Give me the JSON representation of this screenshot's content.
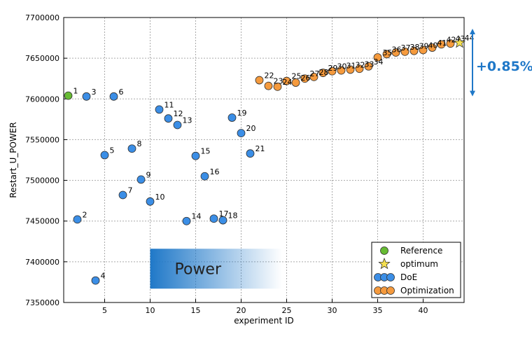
{
  "chart_data": {
    "type": "scatter",
    "xlabel": "experiment ID",
    "ylabel": "Restart_U_POWER",
    "xlim": [
      0.5,
      44.5
    ],
    "ylim": [
      7350000,
      7700000
    ],
    "xticks": [
      5,
      10,
      15,
      20,
      25,
      30,
      35,
      40
    ],
    "yticks": [
      7350000,
      7400000,
      7450000,
      7500000,
      7550000,
      7600000,
      7650000,
      7700000
    ],
    "grid": true,
    "legend_position": "bottom-right",
    "series": [
      {
        "name": "Reference",
        "color": "#66bb33",
        "marker": "circle",
        "points": [
          {
            "x": 1,
            "y": 7604000,
            "label": "1"
          }
        ]
      },
      {
        "name": "DoE",
        "color": "#3b8ee6",
        "marker": "circle",
        "points": [
          {
            "x": 2,
            "y": 7452000,
            "label": "2"
          },
          {
            "x": 3,
            "y": 7603000,
            "label": "3"
          },
          {
            "x": 4,
            "y": 7377000,
            "label": "4"
          },
          {
            "x": 5,
            "y": 7531000,
            "label": "5"
          },
          {
            "x": 6,
            "y": 7603000,
            "label": "6"
          },
          {
            "x": 7,
            "y": 7482000,
            "label": "7"
          },
          {
            "x": 8,
            "y": 7539000,
            "label": "8"
          },
          {
            "x": 9,
            "y": 7501000,
            "label": "9"
          },
          {
            "x": 10,
            "y": 7474000,
            "label": "10"
          },
          {
            "x": 11,
            "y": 7587000,
            "label": "11"
          },
          {
            "x": 12,
            "y": 7576000,
            "label": "12"
          },
          {
            "x": 13,
            "y": 7568000,
            "label": "13"
          },
          {
            "x": 14,
            "y": 7450000,
            "label": "14"
          },
          {
            "x": 15,
            "y": 7530000,
            "label": "15"
          },
          {
            "x": 16,
            "y": 7505000,
            "label": "16"
          },
          {
            "x": 17,
            "y": 7453000,
            "label": "17"
          },
          {
            "x": 18,
            "y": 7451000,
            "label": "18"
          },
          {
            "x": 19,
            "y": 7577000,
            "label": "19"
          },
          {
            "x": 20,
            "y": 7558000,
            "label": "20"
          },
          {
            "x": 21,
            "y": 7533000,
            "label": "21"
          }
        ]
      },
      {
        "name": "Optimization",
        "color": "#f59a3d",
        "marker": "circle",
        "points": [
          {
            "x": 22,
            "y": 7623000,
            "label": "22"
          },
          {
            "x": 23,
            "y": 7616000,
            "label": "23"
          },
          {
            "x": 24,
            "y": 7615000,
            "label": "24"
          },
          {
            "x": 25,
            "y": 7622000,
            "label": "25"
          },
          {
            "x": 26,
            "y": 7620000,
            "label": "26"
          },
          {
            "x": 27,
            "y": 7625000,
            "label": "27"
          },
          {
            "x": 28,
            "y": 7627000,
            "label": "28"
          },
          {
            "x": 29,
            "y": 7632000,
            "label": "29"
          },
          {
            "x": 30,
            "y": 7634000,
            "label": "30"
          },
          {
            "x": 31,
            "y": 7635000,
            "label": "31"
          },
          {
            "x": 32,
            "y": 7636000,
            "label": "32"
          },
          {
            "x": 33,
            "y": 7637000,
            "label": "33"
          },
          {
            "x": 34,
            "y": 7640000,
            "label": "34"
          },
          {
            "x": 35,
            "y": 7651000,
            "label": "35"
          },
          {
            "x": 36,
            "y": 7655000,
            "label": "36"
          },
          {
            "x": 37,
            "y": 7657000,
            "label": "37"
          },
          {
            "x": 38,
            "y": 7658000,
            "label": "38"
          },
          {
            "x": 39,
            "y": 7659000,
            "label": "39"
          },
          {
            "x": 40,
            "y": 7660000,
            "label": "40"
          },
          {
            "x": 41,
            "y": 7663000,
            "label": "41"
          },
          {
            "x": 42,
            "y": 7667000,
            "label": "42"
          },
          {
            "x": 43,
            "y": 7668000,
            "label": "43"
          }
        ]
      },
      {
        "name": "optimum",
        "color": "#f5e050",
        "marker": "star",
        "points": [
          {
            "x": 44,
            "y": 7669000,
            "label": "44"
          }
        ]
      }
    ],
    "legend": [
      {
        "name": "Reference",
        "marker": "circle",
        "color": "#66bb33"
      },
      {
        "name": "optimum",
        "marker": "star",
        "color": "#f5e050"
      },
      {
        "name": "DoE",
        "marker": "circle-triple",
        "color": "#3b8ee6"
      },
      {
        "name": "Optimization",
        "marker": "circle-triple",
        "color": "#f59a3d"
      }
    ],
    "annotations": {
      "gain_label": "+0.85%",
      "gain_color": "#1f78c8",
      "gain_from": 7604000,
      "gain_to": 7669000,
      "banner_label": "Power",
      "banner_color": "#1f78c8",
      "banner_x_start": 10,
      "banner_x_end": 24.5,
      "banner_y_low": 7367000,
      "banner_y_high": 7416000
    }
  }
}
